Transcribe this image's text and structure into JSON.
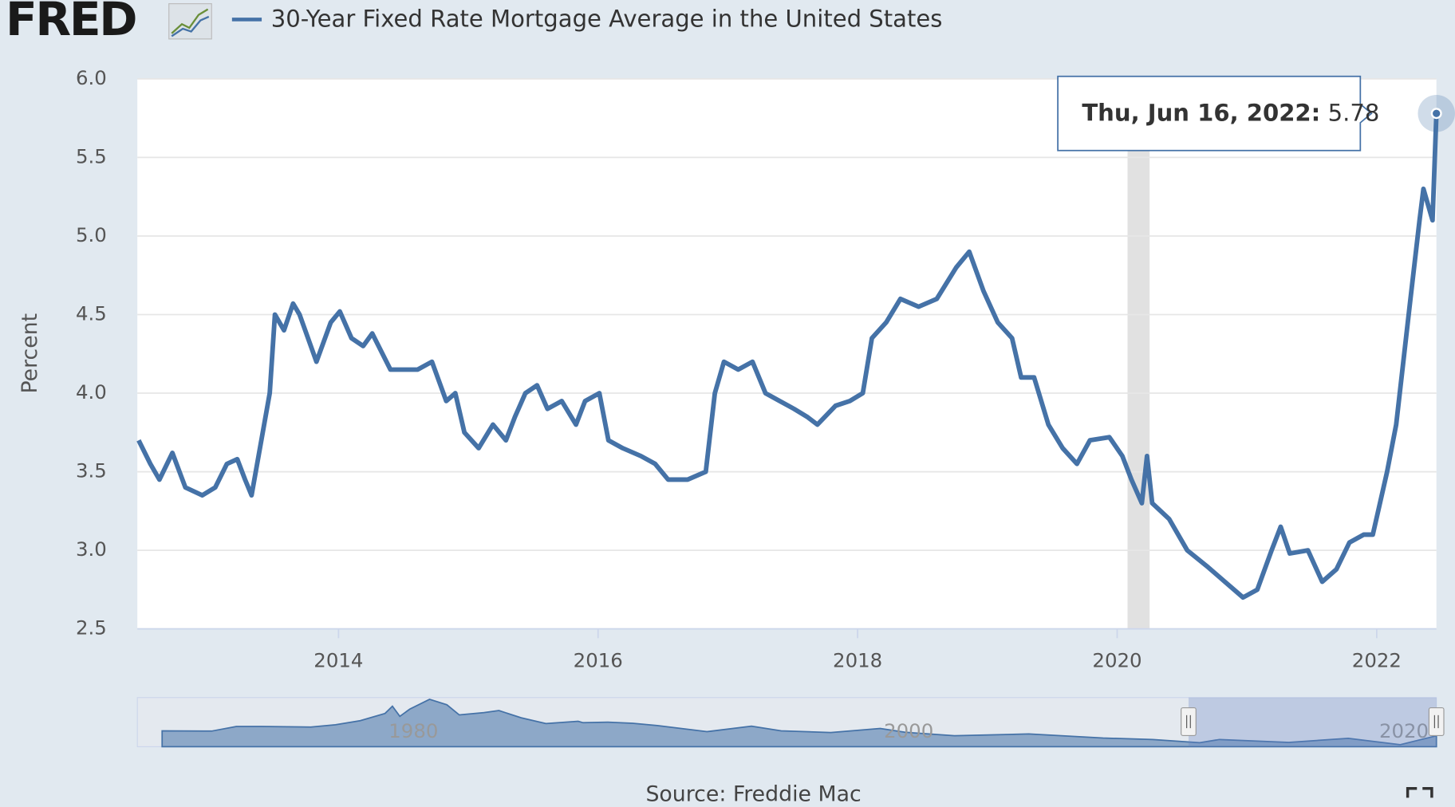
{
  "logo": "FRED",
  "chart_data": {
    "type": "line",
    "title": "30-Year Fixed Rate Mortgage Average in the United States",
    "ylabel": "Percent",
    "source": "Source: Freddie Mac",
    "xlim": [
      2012.45,
      2022.46
    ],
    "ylim": [
      2.5,
      6.0
    ],
    "xticks": [
      2014,
      2016,
      2018,
      2020,
      2022
    ],
    "yticks": [
      2.5,
      {
        "value": 3.0,
        "label": "3.0"
      },
      3.5,
      {
        "value": 4.0,
        "label": "4.0"
      },
      4.5,
      {
        "value": 5.0,
        "label": "5.0"
      },
      5.5,
      {
        "value": 6.0,
        "label": "6.0"
      }
    ],
    "grid": true,
    "recession": [
      2020.08,
      2020.25
    ],
    "tooltip": {
      "date": "Thu, Jun 16, 2022:"
    },
    "series": [
      {
        "name": "30-Year Fixed Rate Mortgage Average in the United States",
        "color": "#4572a7",
        "x": [
          2012.46,
          2012.55,
          2012.62,
          2012.72,
          2012.82,
          2012.95,
          2013.05,
          2013.14,
          2013.22,
          2013.28,
          2013.33,
          2013.47,
          2013.51,
          2013.58,
          2013.65,
          2013.7,
          2013.83,
          2013.94,
          2014.01,
          2014.1,
          2014.19,
          2014.26,
          2014.4,
          2014.61,
          2014.72,
          2014.83,
          2014.9,
          2014.97,
          2015.08,
          2015.19,
          2015.29,
          2015.36,
          2015.44,
          2015.53,
          2015.61,
          2015.72,
          2015.83,
          2015.9,
          2016.01,
          2016.08,
          2016.19,
          2016.33,
          2016.44,
          2016.54,
          2016.69,
          2016.83,
          2016.9,
          2016.97,
          2017.08,
          2017.19,
          2017.29,
          2017.4,
          2017.51,
          2017.61,
          2017.69,
          2017.83,
          2017.94,
          2018.04,
          2018.11,
          2018.22,
          2018.33,
          2018.47,
          2018.61,
          2018.76,
          2018.86,
          2018.97,
          2019.08,
          2019.19,
          2019.26,
          2019.36,
          2019.47,
          2019.58,
          2019.69,
          2019.79,
          2019.94,
          2020.04,
          2020.11,
          2020.19,
          2020.23,
          2020.27,
          2020.4,
          2020.54,
          2020.69,
          2020.83,
          2020.97,
          2021.08,
          2021.19,
          2021.26,
          2021.33,
          2021.47,
          2021.58,
          2021.69,
          2021.79,
          2021.9,
          2021.97,
          2022.08,
          2022.15,
          2022.26,
          2022.33,
          2022.36,
          2022.43,
          2022.46
        ],
        "values": [
          3.7,
          3.55,
          3.45,
          3.62,
          3.4,
          3.35,
          3.4,
          3.55,
          3.58,
          3.45,
          3.35,
          4.0,
          4.5,
          4.4,
          4.57,
          4.5,
          4.2,
          4.45,
          4.52,
          4.35,
          4.3,
          4.38,
          4.15,
          4.15,
          4.2,
          3.95,
          4.0,
          3.75,
          3.65,
          3.8,
          3.7,
          3.85,
          4.0,
          4.05,
          3.9,
          3.95,
          3.8,
          3.95,
          4.0,
          3.7,
          3.65,
          3.6,
          3.55,
          3.45,
          3.45,
          3.5,
          4.0,
          4.2,
          4.15,
          4.2,
          4.0,
          3.95,
          3.9,
          3.85,
          3.8,
          3.92,
          3.95,
          4.0,
          4.35,
          4.45,
          4.6,
          4.55,
          4.6,
          4.8,
          4.9,
          4.65,
          4.45,
          4.35,
          4.1,
          4.1,
          3.8,
          3.65,
          3.55,
          3.7,
          3.72,
          3.6,
          3.45,
          3.3,
          3.6,
          3.3,
          3.2,
          3.0,
          2.9,
          2.8,
          2.7,
          2.75,
          3.0,
          3.15,
          2.98,
          3.0,
          2.8,
          2.88,
          3.05,
          3.1,
          3.1,
          3.5,
          3.8,
          4.6,
          5.1,
          5.3,
          5.1,
          5.78
        ]
      }
    ],
    "navigator": {
      "xlim": [
        1970,
        2022.46
      ],
      "ylim": [
        2,
        19
      ],
      "xticks": [
        1980,
        2000,
        2020
      ],
      "x": [
        1971,
        1973,
        1974,
        1975,
        1977,
        1978,
        1979,
        1980,
        1980.3,
        1980.6,
        1981,
        1981.8,
        1982.5,
        1983,
        1984,
        1984.6,
        1985.5,
        1986.5,
        1987.8,
        1988,
        1989,
        1990,
        1991,
        1993,
        1994.8,
        1996,
        1998,
        2000,
        2001,
        2003,
        2006,
        2009,
        2011,
        2012.9,
        2013.7,
        2016.5,
        2018.9,
        2021,
        2022.46
      ],
      "values": [
        7.5,
        7.4,
        9,
        9,
        8.8,
        9.6,
        11,
        13.5,
        16,
        12.5,
        15,
        18.4,
        16.5,
        13,
        13.8,
        14.5,
        12,
        10,
        10.8,
        10.3,
        10.5,
        10.1,
        9.3,
        7.2,
        9.1,
        7.5,
        6.9,
        8.3,
        7,
        5.8,
        6.4,
        5,
        4.5,
        3.4,
        4.5,
        3.5,
        4.9,
        2.7,
        5.78
      ]
    }
  }
}
